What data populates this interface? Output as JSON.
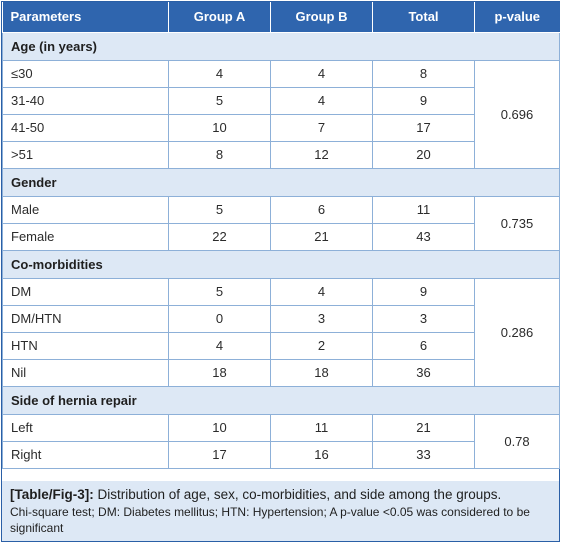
{
  "table": {
    "headers": [
      "Parameters",
      "Group A",
      "Group B",
      "Total",
      "p-value"
    ],
    "sections": [
      {
        "title": "Age (in years)",
        "p_value": "0.696",
        "rows": [
          {
            "label": "≤30",
            "a": "4",
            "b": "4",
            "total": "8"
          },
          {
            "label": "31-40",
            "a": "5",
            "b": "4",
            "total": "9"
          },
          {
            "label": "41-50",
            "a": "10",
            "b": "7",
            "total": "17"
          },
          {
            "label": ">51",
            "a": "8",
            "b": "12",
            "total": "20"
          }
        ]
      },
      {
        "title": "Gender",
        "p_value": "0.735",
        "rows": [
          {
            "label": "Male",
            "a": "5",
            "b": "6",
            "total": "11"
          },
          {
            "label": "Female",
            "a": "22",
            "b": "21",
            "total": "43"
          }
        ]
      },
      {
        "title": "Co-morbidities",
        "p_value": "0.286",
        "rows": [
          {
            "label": "DM",
            "a": "5",
            "b": "4",
            "total": "9"
          },
          {
            "label": "DM/HTN",
            "a": "0",
            "b": "3",
            "total": "3"
          },
          {
            "label": "HTN",
            "a": "4",
            "b": "2",
            "total": "6"
          },
          {
            "label": "Nil",
            "a": "18",
            "b": "18",
            "total": "36"
          }
        ]
      },
      {
        "title": "Side of hernia repair",
        "p_value": "0.78",
        "rows": [
          {
            "label": "Left",
            "a": "10",
            "b": "11",
            "total": "21"
          },
          {
            "label": "Right",
            "a": "17",
            "b": "16",
            "total": "33"
          }
        ]
      }
    ]
  },
  "caption": {
    "fig_id": "[Table/Fig-3]:",
    "title": "Distribution of age, sex, co-morbidities, and side among the groups.",
    "notes": "Chi-square test; DM: Diabetes mellitus; HTN: Hypertension; A p-value <0.05 was considered to be significant"
  }
}
